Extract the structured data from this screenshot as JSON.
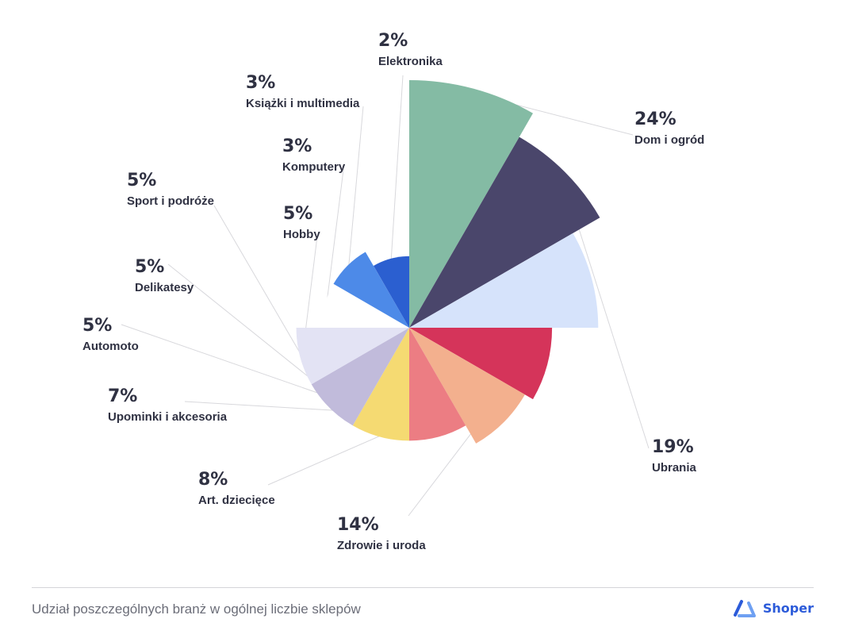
{
  "chart_data": {
    "type": "pie",
    "variant": "polar-area",
    "slices": [
      {
        "label": "Dom i ogród",
        "value": 24,
        "display": "24%",
        "color": "#84bba4"
      },
      {
        "label": "Ubrania",
        "value": 19,
        "display": "19%",
        "color": "#4a466b"
      },
      {
        "label": "Zdrowie i uroda",
        "value": 14,
        "display": "14%",
        "color": "#d6e3fb"
      },
      {
        "label": "Art. dziecięce",
        "value": 8,
        "display": "8%",
        "color": "#d5345a"
      },
      {
        "label": "Upominki i akcesoria",
        "value": 7,
        "display": "7%",
        "color": "#f3b08e"
      },
      {
        "label": "Automoto",
        "value": 5,
        "display": "5%",
        "color": "#ec7d83"
      },
      {
        "label": "Delikatesy",
        "value": 5,
        "display": "5%",
        "color": "#f5da72"
      },
      {
        "label": "Sport i podróże",
        "value": 5,
        "display": "5%",
        "color": "#c1bbdb"
      },
      {
        "label": "Hobby",
        "value": 5,
        "display": "5%",
        "color": "#e3e3f4"
      },
      {
        "label": "Komputery",
        "value": 3,
        "display": "3%",
        "color": "#ffffff"
      },
      {
        "label": "Książki i multimedia",
        "value": 3,
        "display": "3%",
        "color": "#4d8ae8"
      },
      {
        "label": "Elektronika",
        "value": 2,
        "display": "2%",
        "color": "#2b5fd0"
      }
    ]
  },
  "footer": {
    "caption": "Udział poszczególnych branż w ogólnej liczbie sklepów",
    "brand": "Shoper",
    "brand_color": "#2c5bd9"
  }
}
